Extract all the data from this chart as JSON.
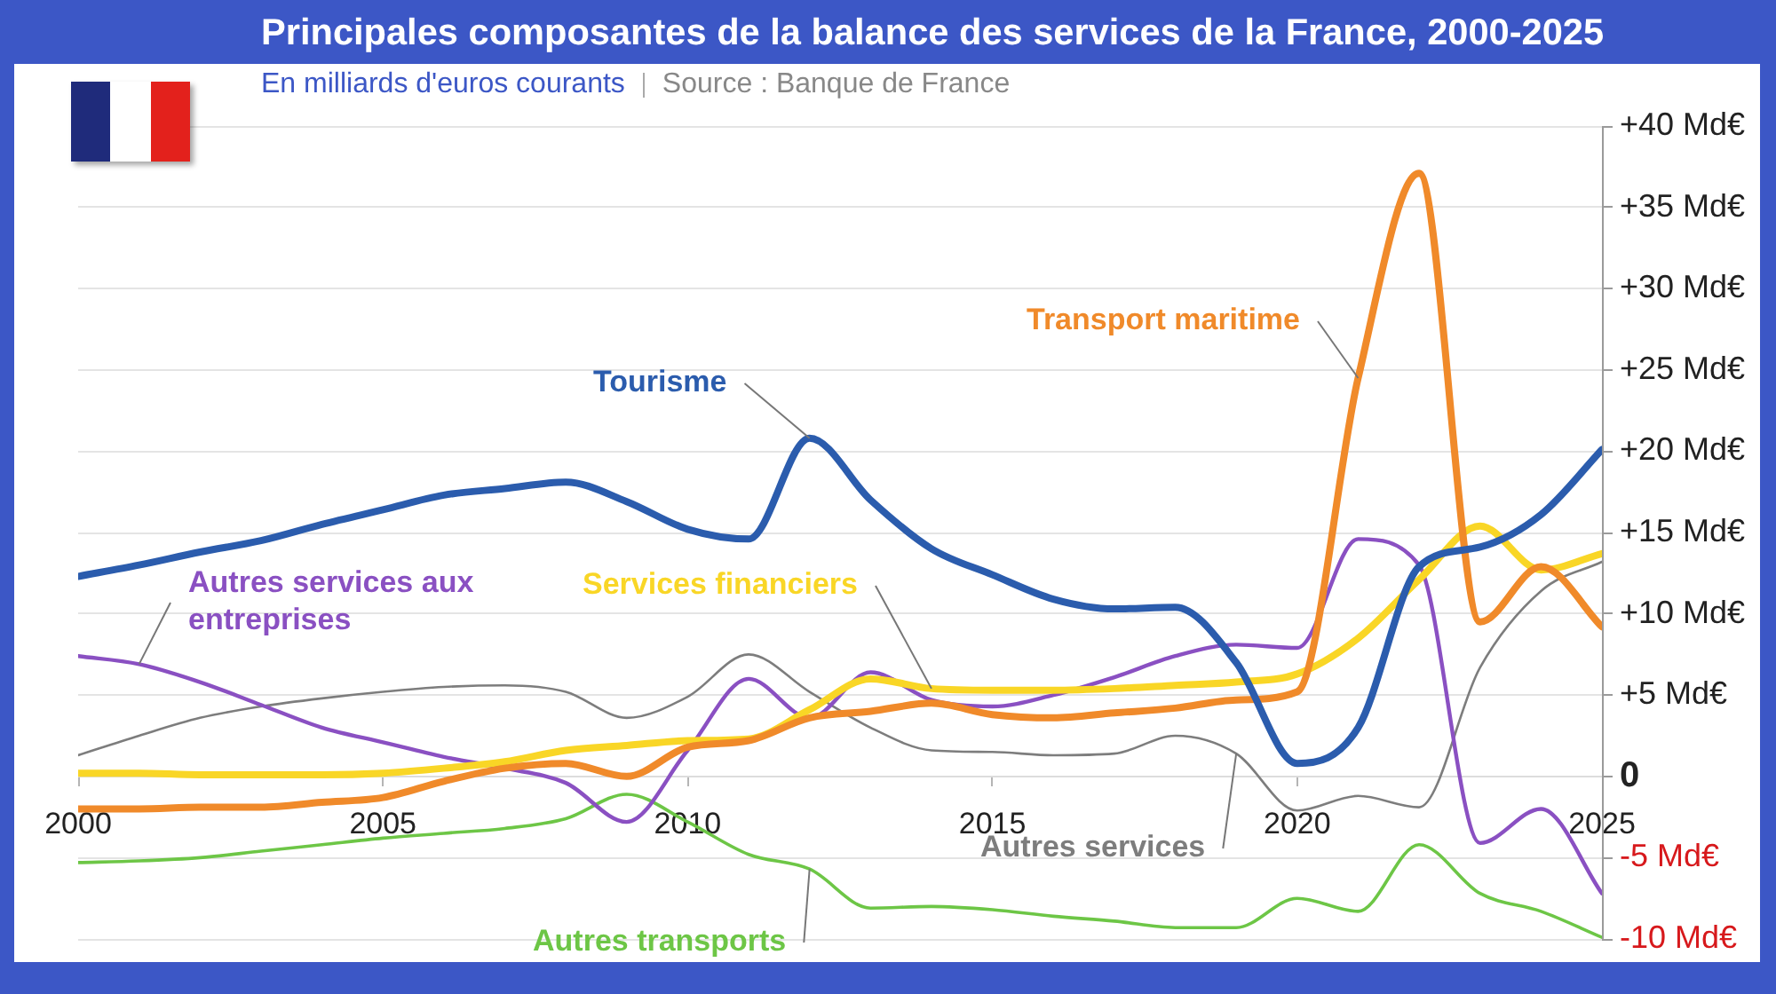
{
  "chart_data": {
    "type": "line",
    "title": "Principales composantes de la balance des services de la France, 2000-2025",
    "subtitle": "En milliards d'euros courants",
    "annotations": [
      "Source : Banque de France"
    ],
    "x": [
      2000,
      2001,
      2002,
      2003,
      2004,
      2005,
      2006,
      2007,
      2008,
      2009,
      2010,
      2011,
      2012,
      2013,
      2014,
      2015,
      2016,
      2017,
      2018,
      2019,
      2020,
      2021,
      2022,
      2023,
      2024,
      2025
    ],
    "xlim": [
      2000,
      2025
    ],
    "xticks": [
      2000,
      2005,
      2010,
      2015,
      2020,
      2025
    ],
    "ylim": [
      -10,
      40
    ],
    "yticks": [
      {
        "value": -10,
        "label": "-10 Md€"
      },
      {
        "value": -5,
        "label": "-5 Md€"
      },
      0,
      {
        "value": 5,
        "label": "+5 Md€"
      },
      {
        "value": 10,
        "label": "+10 Md€"
      },
      {
        "value": 15,
        "label": "+15 Md€"
      },
      {
        "value": 20,
        "label": "+20 Md€"
      },
      {
        "value": 25,
        "label": "+25 Md€"
      },
      {
        "value": 30,
        "label": "+30 Md€"
      },
      {
        "value": 35,
        "label": "+35 Md€"
      },
      {
        "value": 40,
        "label": "+40 Md€"
      }
    ],
    "grid": "y",
    "series": [
      {
        "name": "Tourisme",
        "color": "#2b5cad",
        "values": [
          12.3,
          13.0,
          13.8,
          14.5,
          15.5,
          16.4,
          17.3,
          17.7,
          18.1,
          16.9,
          15.2,
          14.6,
          20.8,
          17.0,
          14.0,
          12.4,
          10.9,
          10.3,
          10.4,
          7.0,
          0.8,
          3.0,
          12.9,
          14.1,
          16.1,
          20.1
        ]
      },
      {
        "name": "Transport maritime",
        "color": "#f08a2a",
        "values": [
          -2.0,
          -2.0,
          -1.9,
          -1.9,
          -1.6,
          -1.3,
          -0.3,
          0.5,
          0.8,
          0.0,
          1.8,
          2.2,
          3.6,
          4.0,
          4.5,
          3.8,
          3.6,
          3.9,
          4.2,
          4.7,
          5.2,
          24.5,
          37.1,
          9.5,
          12.9,
          9.2
        ]
      },
      {
        "name": "Services financiers",
        "color": "#f9d626",
        "values": [
          0.2,
          0.2,
          0.1,
          0.1,
          0.1,
          0.2,
          0.5,
          0.9,
          1.6,
          1.9,
          2.2,
          2.3,
          4.1,
          6.0,
          5.4,
          5.3,
          5.3,
          5.4,
          5.6,
          5.8,
          6.3,
          8.5,
          12.1,
          15.4,
          12.7,
          13.7
        ]
      },
      {
        "name": "Autres services aux entreprises",
        "color": "#8a50c2",
        "values": [
          7.4,
          6.9,
          5.8,
          4.4,
          3.0,
          2.1,
          1.2,
          0.5,
          -0.4,
          -2.8,
          1.6,
          6.0,
          3.6,
          6.4,
          4.7,
          4.3,
          5.0,
          6.1,
          7.4,
          8.1,
          7.9,
          14.6,
          13.0,
          -4.1,
          -2.0,
          -7.2
        ]
      },
      {
        "name": "Autres services",
        "color": "#7d7d7d",
        "values": [
          1.3,
          2.5,
          3.6,
          4.3,
          4.8,
          5.2,
          5.5,
          5.6,
          5.2,
          3.6,
          4.9,
          7.5,
          5.2,
          3.0,
          1.6,
          1.5,
          1.3,
          1.4,
          2.5,
          1.4,
          -2.1,
          -1.2,
          -1.9,
          6.7,
          11.4,
          13.2
        ]
      },
      {
        "name": "Autres transports",
        "color": "#6dc646",
        "values": [
          -5.3,
          -5.2,
          -5.0,
          -4.6,
          -4.2,
          -3.8,
          -3.5,
          -3.2,
          -2.6,
          -1.1,
          -2.8,
          -4.8,
          -5.7,
          -8.1,
          -8.0,
          -8.2,
          -8.6,
          -8.9,
          -9.3,
          -9.3,
          -7.5,
          -8.3,
          -4.2,
          -7.2,
          -8.3,
          -9.9
        ]
      }
    ]
  }
}
